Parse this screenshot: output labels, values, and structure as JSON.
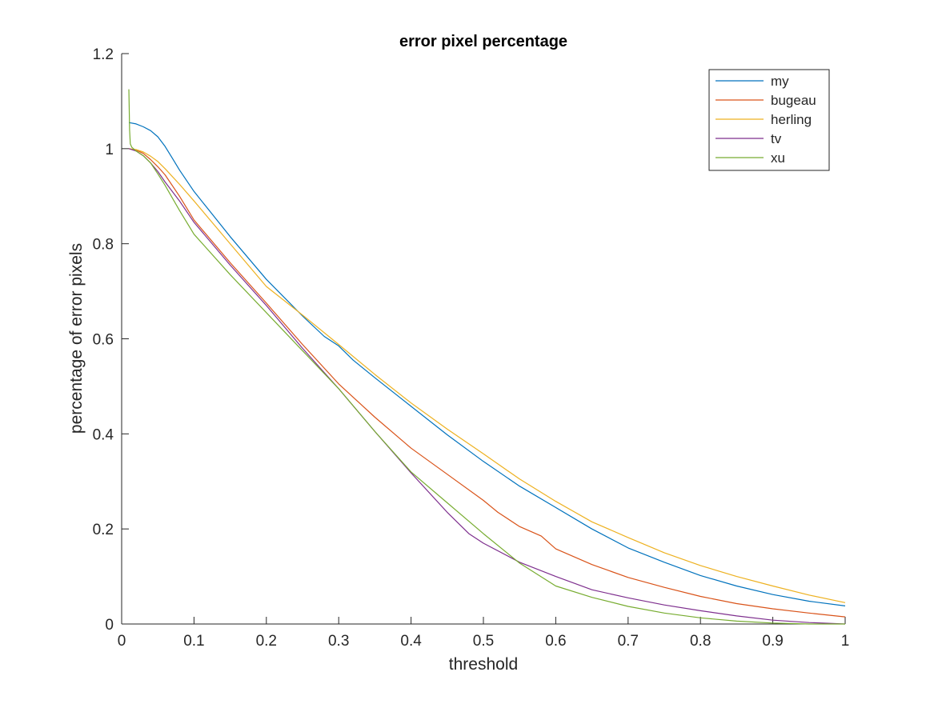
{
  "chart_data": {
    "type": "line",
    "title": "error pixel percentage",
    "xlabel": "threshold",
    "ylabel": "percentage of error pixels",
    "xlim": [
      0,
      1
    ],
    "ylim": [
      0,
      1.2
    ],
    "xticks": [
      0,
      0.1,
      0.2,
      0.3,
      0.4,
      0.5,
      0.6,
      0.7,
      0.8,
      0.9,
      1
    ],
    "xtick_labels": [
      "0",
      "0.1",
      "0.2",
      "0.3",
      "0.4",
      "0.5",
      "0.6",
      "0.7",
      "0.8",
      "0.9",
      "1"
    ],
    "yticks": [
      0,
      0.2,
      0.4,
      0.6,
      0.8,
      1,
      1.2
    ],
    "ytick_labels": [
      "0",
      "0.2",
      "0.4",
      "0.6",
      "0.8",
      "1",
      "1.2"
    ],
    "grid": false,
    "legend_position": "top-right",
    "series": [
      {
        "name": "my",
        "color": "#0072BD",
        "x": [
          0.01,
          0.02,
          0.03,
          0.04,
          0.05,
          0.06,
          0.07,
          0.08,
          0.1,
          0.12,
          0.15,
          0.2,
          0.25,
          0.28,
          0.3,
          0.32,
          0.35,
          0.4,
          0.45,
          0.5,
          0.55,
          0.6,
          0.65,
          0.7,
          0.75,
          0.8,
          0.85,
          0.9,
          0.95,
          1.0
        ],
        "y": [
          1.055,
          1.052,
          1.046,
          1.038,
          1.025,
          1.005,
          0.98,
          0.955,
          0.91,
          0.872,
          0.815,
          0.725,
          0.648,
          0.605,
          0.585,
          0.555,
          0.518,
          0.458,
          0.398,
          0.342,
          0.29,
          0.245,
          0.2,
          0.16,
          0.13,
          0.102,
          0.08,
          0.062,
          0.048,
          0.038
        ]
      },
      {
        "name": "bugeau",
        "color": "#D95319",
        "x": [
          0.01,
          0.02,
          0.03,
          0.04,
          0.05,
          0.06,
          0.08,
          0.1,
          0.15,
          0.2,
          0.25,
          0.3,
          0.35,
          0.4,
          0.45,
          0.5,
          0.52,
          0.55,
          0.58,
          0.6,
          0.65,
          0.7,
          0.75,
          0.8,
          0.85,
          0.9,
          0.95,
          1.0
        ],
        "y": [
          1.0,
          0.997,
          0.99,
          0.977,
          0.962,
          0.945,
          0.9,
          0.85,
          0.76,
          0.675,
          0.588,
          0.505,
          0.435,
          0.37,
          0.315,
          0.26,
          0.235,
          0.205,
          0.185,
          0.158,
          0.125,
          0.098,
          0.077,
          0.058,
          0.043,
          0.032,
          0.023,
          0.015
        ]
      },
      {
        "name": "herling",
        "color": "#EDB120",
        "x": [
          0.01,
          0.02,
          0.03,
          0.04,
          0.05,
          0.06,
          0.08,
          0.1,
          0.15,
          0.2,
          0.25,
          0.3,
          0.35,
          0.4,
          0.45,
          0.5,
          0.55,
          0.6,
          0.65,
          0.7,
          0.75,
          0.8,
          0.85,
          0.9,
          0.95,
          1.0
        ],
        "y": [
          1.0,
          0.998,
          0.993,
          0.984,
          0.973,
          0.958,
          0.925,
          0.89,
          0.8,
          0.71,
          0.65,
          0.588,
          0.525,
          0.465,
          0.41,
          0.358,
          0.305,
          0.258,
          0.215,
          0.182,
          0.15,
          0.123,
          0.1,
          0.08,
          0.061,
          0.045
        ]
      },
      {
        "name": "tv",
        "color": "#7E2F8E",
        "x": [
          0.01,
          0.02,
          0.03,
          0.04,
          0.05,
          0.06,
          0.08,
          0.1,
          0.15,
          0.2,
          0.25,
          0.3,
          0.35,
          0.4,
          0.45,
          0.48,
          0.5,
          0.55,
          0.6,
          0.65,
          0.7,
          0.75,
          0.8,
          0.85,
          0.9,
          0.95,
          1.0
        ],
        "y": [
          1.0,
          0.995,
          0.985,
          0.97,
          0.952,
          0.93,
          0.89,
          0.845,
          0.755,
          0.67,
          0.58,
          0.495,
          0.405,
          0.318,
          0.235,
          0.19,
          0.17,
          0.13,
          0.1,
          0.072,
          0.055,
          0.04,
          0.028,
          0.017,
          0.008,
          0.003,
          0.0
        ]
      },
      {
        "name": "xu",
        "color": "#77AC30",
        "x": [
          0.01,
          0.0105,
          0.011,
          0.012,
          0.014,
          0.02,
          0.03,
          0.04,
          0.05,
          0.06,
          0.08,
          0.1,
          0.15,
          0.2,
          0.25,
          0.3,
          0.35,
          0.4,
          0.45,
          0.5,
          0.55,
          0.6,
          0.65,
          0.7,
          0.75,
          0.8,
          0.85,
          0.9,
          0.95,
          1.0
        ],
        "y": [
          1.125,
          1.08,
          1.04,
          1.01,
          1.003,
          0.995,
          0.985,
          0.97,
          0.947,
          0.923,
          0.87,
          0.82,
          0.735,
          0.655,
          0.575,
          0.495,
          0.405,
          0.32,
          0.255,
          0.19,
          0.128,
          0.08,
          0.056,
          0.037,
          0.023,
          0.013,
          0.006,
          0.002,
          0.0,
          0.0
        ]
      }
    ]
  }
}
